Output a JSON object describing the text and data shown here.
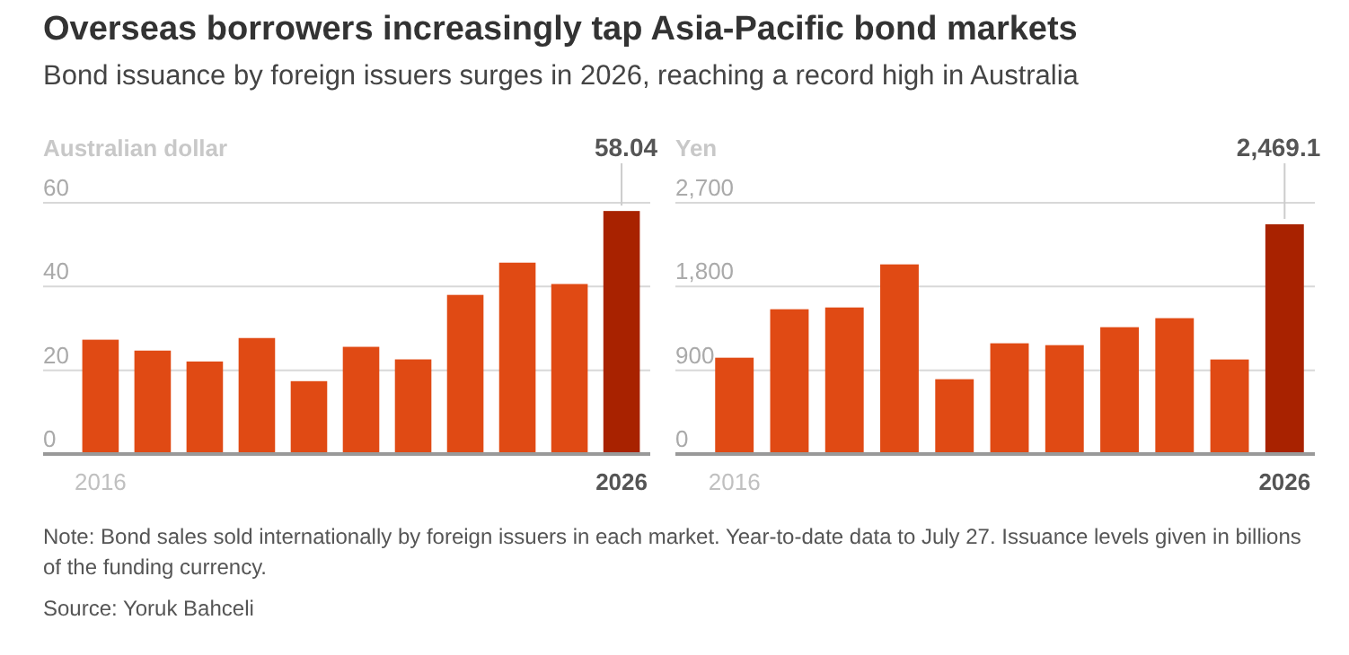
{
  "chart_data": [
    {
      "type": "bar",
      "title": "Overseas borrowers increasingly tap Asia-Pacific bond markets",
      "subtitle": "Bond issuance by foreign issuers surges in 2026, reaching a record high in Australia",
      "ylabel": "Australian dollar",
      "categories": [
        "2016",
        null,
        null,
        null,
        null,
        null,
        null,
        null,
        null,
        null,
        "2026"
      ],
      "values": [
        27.3,
        24.7,
        22.1,
        27.7,
        17.4,
        25.6,
        22.6,
        38,
        45.7,
        40.6,
        58.04
      ],
      "colors": [
        "#e04a14",
        "#e04a14",
        "#e04a14",
        "#e04a14",
        "#e04a14",
        "#e04a14",
        "#e04a14",
        "#e04a14",
        "#e04a14",
        "#e04a14",
        "#a82200"
      ],
      "value_labels": [
        null,
        null,
        null,
        null,
        null,
        null,
        null,
        null,
        null,
        null,
        "58.04"
      ],
      "ylim": [
        0,
        60
      ],
      "yticks": [
        0,
        20,
        40,
        60
      ],
      "grid": "y",
      "annotations": [
        "Note: Bond sales sold internationally by foreign issuers in each market. Year-to-date data to July 27. Issuance levels given in billions of the funding currency.",
        "Source: Yoruk Bahceli"
      ]
    },
    {
      "type": "bar",
      "ylabel": "Yen",
      "categories": [
        "2016",
        null,
        null,
        null,
        null,
        null,
        null,
        null,
        null,
        null,
        "2026"
      ],
      "values": [
        1035,
        1556,
        1575,
        2038,
        804,
        1190,
        1170,
        1363,
        1460,
        1016,
        2469.1
      ],
      "colors": [
        "#e04a14",
        "#e04a14",
        "#e04a14",
        "#e04a14",
        "#e04a14",
        "#e04a14",
        "#e04a14",
        "#e04a14",
        "#e04a14",
        "#e04a14",
        "#a82200"
      ],
      "value_labels": [
        null,
        null,
        null,
        null,
        null,
        null,
        null,
        null,
        null,
        null,
        "2,469.1"
      ],
      "ylim": [
        0,
        2700
      ],
      "yticks": [
        0,
        {
          "value": 900,
          "label": "900"
        },
        {
          "value": 1800,
          "label": "1,800"
        },
        {
          "value": 2700,
          "label": "2,700"
        }
      ],
      "grid": "y"
    }
  ]
}
